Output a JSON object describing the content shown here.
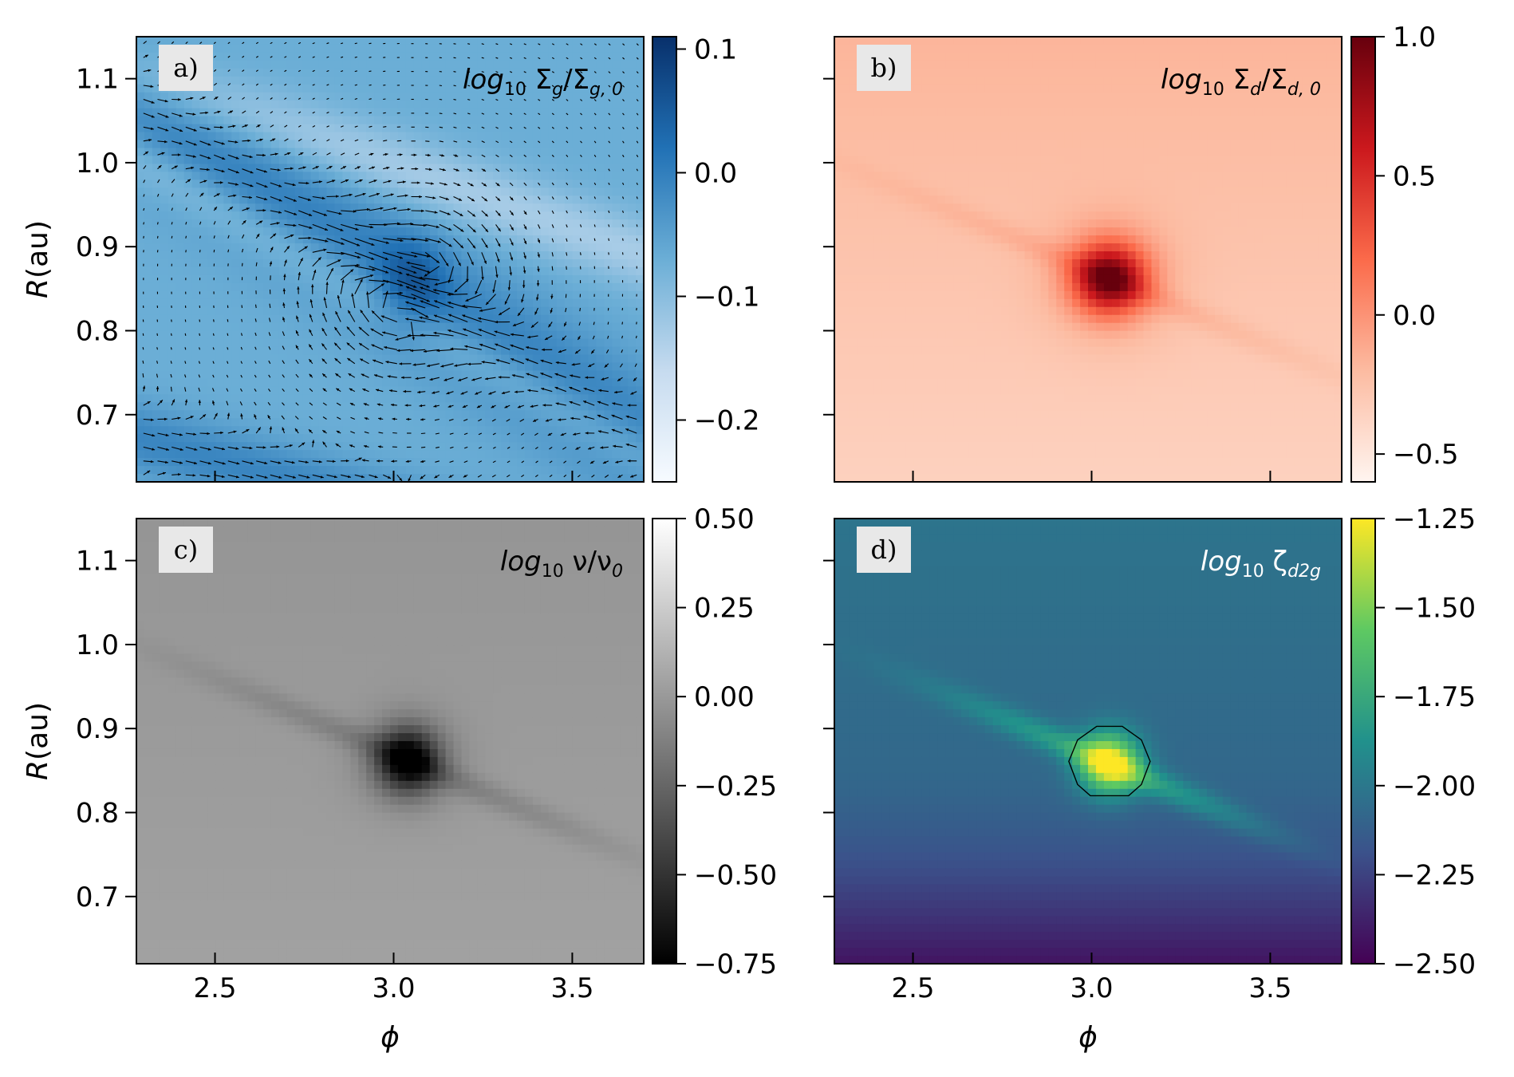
{
  "chart_data": [
    {
      "type": "heatmap",
      "panel": "a)",
      "title": "log10 Σg/Σg,0",
      "title_parts": {
        "prefix": "log",
        "sub": "10",
        "body": "Σ",
        "body_sub": "g",
        "slash": "/Σ",
        "slash_sub": "g, 0"
      },
      "title_color": "#000000",
      "colormap": "Blues",
      "colors": [
        "#f7fbff",
        "#c6dbef",
        "#6baed6",
        "#2171b5",
        "#08306b"
      ],
      "xlabel": "",
      "ylabel": "R(au)",
      "xlim": [
        2.28,
        3.7
      ],
      "ylim": [
        0.62,
        1.15
      ],
      "x_ticks": [
        2.5,
        3.0,
        3.5
      ],
      "x_tick_labels": [
        "",
        "",
        ""
      ],
      "y_ticks": [
        0.7,
        0.8,
        0.9,
        1.0,
        1.1
      ],
      "y_tick_labels": [
        "0.7",
        "0.8",
        "0.9",
        "1.0",
        "1.1"
      ],
      "colorbar_range": [
        -0.25,
        0.11
      ],
      "colorbar_ticks": [
        0.1,
        0.0,
        -0.1,
        -0.2
      ],
      "colorbar_tick_labels": [
        "0.1",
        "0.0",
        "−0.1",
        "−0.2"
      ],
      "features": {
        "vortex_center": [
          3.05,
          0.855
        ],
        "overlay": "velocity-arrows"
      }
    },
    {
      "type": "heatmap",
      "panel": "b)",
      "title": "log10 Σd/Σd,0",
      "title_parts": {
        "prefix": "log",
        "sub": "10",
        "body": "Σ",
        "body_sub": "d",
        "slash": "/Σ",
        "slash_sub": "d, 0"
      },
      "title_color": "#000000",
      "colormap": "Reds",
      "colors": [
        "#fff5f0",
        "#fcbba1",
        "#fb6a4a",
        "#cb181d",
        "#67000d"
      ],
      "xlabel": "",
      "ylabel": "",
      "xlim": [
        2.28,
        3.7
      ],
      "ylim": [
        0.62,
        1.15
      ],
      "x_ticks": [
        2.5,
        3.0,
        3.5
      ],
      "x_tick_labels": [
        "",
        "",
        ""
      ],
      "y_ticks": [
        0.7,
        0.8,
        0.9,
        1.0,
        1.1
      ],
      "y_tick_labels": [
        "",
        "",
        "",
        "",
        ""
      ],
      "colorbar_range": [
        -0.6,
        1.0
      ],
      "colorbar_ticks": [
        1.0,
        0.5,
        0.0,
        -0.5
      ],
      "colorbar_tick_labels": [
        "1.0",
        "0.5",
        "0.0",
        "−0.5"
      ],
      "features": {
        "clump_center": [
          3.05,
          0.862
        ]
      }
    },
    {
      "type": "heatmap",
      "panel": "c)",
      "title": "log10 ν/ν0",
      "title_parts": {
        "prefix": "log",
        "sub": "10",
        "body": "ν",
        "body_sub": "",
        "slash": "/ν",
        "slash_sub": "0"
      },
      "title_color": "#000000",
      "colormap": "Greys_r",
      "colors": [
        "#000000",
        "#555555",
        "#aaaaaa",
        "#ffffff"
      ],
      "xlabel": "ϕ",
      "ylabel": "R(au)",
      "xlim": [
        2.28,
        3.7
      ],
      "ylim": [
        0.62,
        1.15
      ],
      "x_ticks": [
        2.5,
        3.0,
        3.5
      ],
      "x_tick_labels": [
        "2.5",
        "3.0",
        "3.5"
      ],
      "y_ticks": [
        0.7,
        0.8,
        0.9,
        1.0,
        1.1
      ],
      "y_tick_labels": [
        "0.7",
        "0.8",
        "0.9",
        "1.0",
        "1.1"
      ],
      "colorbar_range": [
        -0.75,
        0.5
      ],
      "colorbar_ticks": [
        0.5,
        0.25,
        0.0,
        -0.25,
        -0.5,
        -0.75
      ],
      "colorbar_tick_labels": [
        "0.50",
        "0.25",
        "0.00",
        "−0.25",
        "−0.50",
        "−0.75"
      ],
      "features": {
        "clump_center": [
          3.04,
          0.862
        ]
      }
    },
    {
      "type": "heatmap",
      "panel": "d)",
      "title": "log10 ζd2g",
      "title_parts": {
        "prefix": "log",
        "sub": "10",
        "body": "ζ",
        "body_sub": "d2g",
        "slash": "",
        "slash_sub": ""
      },
      "title_color": "#ffffff",
      "colormap": "viridis",
      "colors": [
        "#440154",
        "#3b528b",
        "#21918c",
        "#5ec962",
        "#fde725"
      ],
      "xlabel": "ϕ",
      "ylabel": "",
      "xlim": [
        2.28,
        3.7
      ],
      "ylim": [
        0.62,
        1.15
      ],
      "x_ticks": [
        2.5,
        3.0,
        3.5
      ],
      "x_tick_labels": [
        "2.5",
        "3.0",
        "3.5"
      ],
      "y_ticks": [
        0.7,
        0.8,
        0.9,
        1.0,
        1.1
      ],
      "y_tick_labels": [
        "",
        "",
        "",
        "",
        ""
      ],
      "colorbar_range": [
        -2.5,
        -1.25
      ],
      "colorbar_ticks": [
        -1.25,
        -1.5,
        -1.75,
        -2.0,
        -2.25,
        -2.5
      ],
      "colorbar_tick_labels": [
        "−1.25",
        "−1.50",
        "−1.75",
        "−2.00",
        "−2.25",
        "−2.50"
      ],
      "features": {
        "clump_center": [
          3.05,
          0.858
        ],
        "overlay": "contour"
      }
    }
  ]
}
